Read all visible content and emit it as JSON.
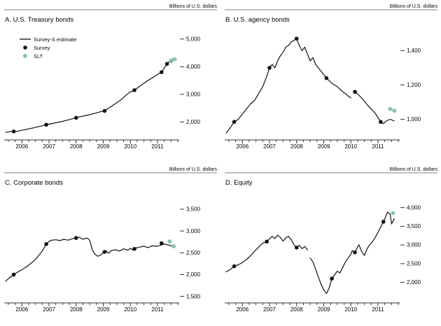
{
  "unit_label": "Billions of U.S. dollars",
  "legend": {
    "estimate_label": "Survey-S estimate",
    "survey_label": "Survey",
    "slt_label": "SLT"
  },
  "colors": {
    "line": "#111111",
    "survey_dot": "#111111",
    "slt_dot": "#8fc2ae",
    "axis": "#333333"
  },
  "x_axis": {
    "start": 2005.4,
    "end": 2011.8,
    "year_labels": [
      2006,
      2007,
      2008,
      2009,
      2010,
      2011
    ]
  },
  "chart_data": [
    {
      "type": "line",
      "title": "A. U.S. Treasury bonds",
      "ylabel": "Billions of U.S. dollars",
      "ylim": [
        1350,
        5450
      ],
      "yticks": [
        2000,
        3000,
        4000,
        5000
      ],
      "legend": true,
      "segments": [
        [
          [
            2005.4,
            1620
          ],
          [
            2005.55,
            1645
          ],
          [
            2005.7,
            1655
          ],
          [
            2005.85,
            1665
          ],
          [
            2006.0,
            1700
          ],
          [
            2006.15,
            1730
          ],
          [
            2006.3,
            1760
          ],
          [
            2006.45,
            1790
          ],
          [
            2006.6,
            1825
          ],
          [
            2006.75,
            1860
          ],
          [
            2006.9,
            1900
          ],
          [
            2007.05,
            1930
          ],
          [
            2007.2,
            1960
          ],
          [
            2007.35,
            1990
          ],
          [
            2007.5,
            2020
          ],
          [
            2007.65,
            2060
          ],
          [
            2007.8,
            2100
          ],
          [
            2007.95,
            2140
          ],
          [
            2008.15,
            2190
          ],
          [
            2008.3,
            2220
          ],
          [
            2008.45,
            2250
          ],
          [
            2008.6,
            2290
          ],
          [
            2008.75,
            2330
          ],
          [
            2008.9,
            2370
          ],
          [
            2009.05,
            2400
          ],
          [
            2009.2,
            2500
          ],
          [
            2009.35,
            2600
          ],
          [
            2009.5,
            2700
          ],
          [
            2009.65,
            2800
          ],
          [
            2009.8,
            2930
          ],
          [
            2009.95,
            3060
          ],
          [
            2010.15,
            3150
          ],
          [
            2010.3,
            3260
          ],
          [
            2010.45,
            3370
          ],
          [
            2010.6,
            3470
          ],
          [
            2010.75,
            3560
          ],
          [
            2010.9,
            3650
          ],
          [
            2011.0,
            3720
          ],
          [
            2011.15,
            3800
          ],
          [
            2011.25,
            3950
          ],
          [
            2011.35,
            4100
          ],
          [
            2011.45,
            4200
          ],
          [
            2011.5,
            4140
          ],
          [
            2011.6,
            4230
          ],
          [
            2011.7,
            4260
          ]
        ]
      ],
      "survey_points": [
        [
          2005.7,
          1655
        ],
        [
          2006.9,
          1900
        ],
        [
          2008.0,
          2150
        ],
        [
          2009.05,
          2400
        ],
        [
          2010.15,
          3150
        ],
        [
          2011.15,
          3800
        ],
        [
          2011.35,
          4100
        ]
      ],
      "slt_points": [
        [
          2011.5,
          4220
        ],
        [
          2011.62,
          4270
        ]
      ]
    },
    {
      "type": "line",
      "title": "B. U.S. agency bonds",
      "ylabel": "Billions of U.S. dollars",
      "ylim": [
        880,
        1540
      ],
      "yticks": [
        1000,
        1200,
        1400
      ],
      "legend": false,
      "segments": [
        [
          [
            2005.4,
            920
          ],
          [
            2005.55,
            950
          ],
          [
            2005.7,
            985
          ],
          [
            2005.85,
            1000
          ],
          [
            2006.0,
            1030
          ],
          [
            2006.15,
            1060
          ],
          [
            2006.3,
            1090
          ],
          [
            2006.45,
            1110
          ],
          [
            2006.6,
            1150
          ],
          [
            2006.75,
            1190
          ],
          [
            2006.9,
            1250
          ],
          [
            2007.0,
            1300
          ],
          [
            2007.1,
            1320
          ],
          [
            2007.2,
            1300
          ],
          [
            2007.3,
            1340
          ],
          [
            2007.4,
            1370
          ],
          [
            2007.5,
            1390
          ],
          [
            2007.6,
            1420
          ],
          [
            2007.7,
            1430
          ],
          [
            2007.8,
            1450
          ],
          [
            2007.9,
            1460
          ],
          [
            2008.0,
            1470
          ],
          [
            2008.1,
            1430
          ],
          [
            2008.2,
            1400
          ],
          [
            2008.3,
            1420
          ],
          [
            2008.4,
            1380
          ],
          [
            2008.5,
            1340
          ],
          [
            2008.6,
            1360
          ],
          [
            2008.7,
            1320
          ],
          [
            2008.8,
            1300
          ],
          [
            2008.9,
            1280
          ],
          [
            2009.0,
            1260
          ],
          [
            2009.1,
            1240
          ],
          [
            2009.2,
            1225
          ],
          [
            2009.3,
            1210
          ],
          [
            2009.4,
            1200
          ],
          [
            2009.5,
            1190
          ],
          [
            2009.6,
            1175
          ],
          [
            2009.7,
            1160
          ],
          [
            2009.8,
            1150
          ],
          [
            2009.9,
            1135
          ],
          [
            2010.0,
            1125
          ]
        ],
        [
          [
            2010.15,
            1160
          ],
          [
            2010.3,
            1140
          ],
          [
            2010.45,
            1115
          ],
          [
            2010.6,
            1085
          ],
          [
            2010.75,
            1060
          ],
          [
            2010.9,
            1035
          ],
          [
            2011.0,
            1010
          ],
          [
            2011.1,
            985
          ],
          [
            2011.2,
            975
          ],
          [
            2011.3,
            990
          ],
          [
            2011.45,
            1000
          ],
          [
            2011.6,
            990
          ]
        ]
      ],
      "survey_points": [
        [
          2005.7,
          985
        ],
        [
          2007.0,
          1300
        ],
        [
          2008.0,
          1470
        ],
        [
          2009.1,
          1240
        ],
        [
          2010.15,
          1160
        ],
        [
          2011.1,
          985
        ]
      ],
      "slt_points": [
        [
          2011.45,
          1060
        ],
        [
          2011.6,
          1050
        ]
      ]
    },
    {
      "type": "line",
      "title": "C. Corporate bonds",
      "ylabel": "Billions of U.S. dollars",
      "ylim": [
        1350,
        3950
      ],
      "yticks": [
        1500,
        2000,
        2500,
        3000,
        3500
      ],
      "legend": false,
      "segments": [
        [
          [
            2005.4,
            1850
          ],
          [
            2005.55,
            1930
          ],
          [
            2005.7,
            2000
          ],
          [
            2005.85,
            2060
          ],
          [
            2006.0,
            2110
          ],
          [
            2006.15,
            2170
          ],
          [
            2006.3,
            2240
          ],
          [
            2006.45,
            2320
          ],
          [
            2006.6,
            2420
          ],
          [
            2006.75,
            2540
          ],
          [
            2006.9,
            2700
          ],
          [
            2007.0,
            2760
          ],
          [
            2007.1,
            2790
          ],
          [
            2007.25,
            2800
          ],
          [
            2007.4,
            2780
          ],
          [
            2007.55,
            2810
          ],
          [
            2007.7,
            2790
          ],
          [
            2007.85,
            2820
          ],
          [
            2008.0,
            2840
          ],
          [
            2008.1,
            2860
          ],
          [
            2008.25,
            2810
          ],
          [
            2008.4,
            2840
          ],
          [
            2008.5,
            2790
          ],
          [
            2008.6,
            2560
          ],
          [
            2008.7,
            2460
          ],
          [
            2008.8,
            2420
          ],
          [
            2008.9,
            2450
          ],
          [
            2009.0,
            2500
          ],
          [
            2009.1,
            2545
          ],
          [
            2009.2,
            2490
          ],
          [
            2009.3,
            2550
          ],
          [
            2009.45,
            2570
          ],
          [
            2009.6,
            2540
          ],
          [
            2009.75,
            2590
          ],
          [
            2009.9,
            2560
          ],
          [
            2010.0,
            2600
          ],
          [
            2010.1,
            2565
          ],
          [
            2010.2,
            2610
          ],
          [
            2010.35,
            2630
          ],
          [
            2010.5,
            2650
          ],
          [
            2010.65,
            2620
          ],
          [
            2010.8,
            2660
          ],
          [
            2010.95,
            2650
          ],
          [
            2011.1,
            2670
          ],
          [
            2011.25,
            2700
          ],
          [
            2011.4,
            2680
          ],
          [
            2011.5,
            2660
          ],
          [
            2011.6,
            2670
          ]
        ]
      ],
      "survey_points": [
        [
          2005.7,
          2000
        ],
        [
          2006.9,
          2700
        ],
        [
          2008.0,
          2840
        ],
        [
          2009.05,
          2520
        ],
        [
          2010.15,
          2590
        ],
        [
          2011.15,
          2720
        ]
      ],
      "slt_points": [
        [
          2011.45,
          2760
        ],
        [
          2011.6,
          2650
        ]
      ]
    },
    {
      "type": "line",
      "title": "D. Equity",
      "ylabel": "Billions of U.S. dollars",
      "ylim": [
        1450,
        4480
      ],
      "yticks": [
        2000,
        2500,
        3000,
        3500,
        4000
      ],
      "legend": false,
      "segments": [
        [
          [
            2005.4,
            2280
          ],
          [
            2005.55,
            2340
          ],
          [
            2005.7,
            2430
          ],
          [
            2005.85,
            2470
          ],
          [
            2006.0,
            2530
          ],
          [
            2006.15,
            2610
          ],
          [
            2006.3,
            2710
          ],
          [
            2006.45,
            2830
          ],
          [
            2006.6,
            2940
          ],
          [
            2006.7,
            3020
          ],
          [
            2006.8,
            3060
          ],
          [
            2006.9,
            3090
          ],
          [
            2007.0,
            3160
          ],
          [
            2007.1,
            3230
          ],
          [
            2007.2,
            3170
          ],
          [
            2007.3,
            3260
          ],
          [
            2007.4,
            3200
          ],
          [
            2007.5,
            3100
          ],
          [
            2007.6,
            3190
          ],
          [
            2007.7,
            3230
          ],
          [
            2007.8,
            3140
          ],
          [
            2007.9,
            3010
          ],
          [
            2008.0,
            2930
          ],
          [
            2008.1,
            2990
          ],
          [
            2008.2,
            2900
          ],
          [
            2008.3,
            2960
          ],
          [
            2008.4,
            2870
          ]
        ],
        [
          [
            2008.5,
            2650
          ],
          [
            2008.6,
            2550
          ],
          [
            2008.7,
            2350
          ],
          [
            2008.8,
            2150
          ],
          [
            2008.9,
            1950
          ],
          [
            2009.0,
            1800
          ],
          [
            2009.1,
            1700
          ],
          [
            2009.2,
            1850
          ],
          [
            2009.3,
            2100
          ],
          [
            2009.4,
            2200
          ],
          [
            2009.5,
            2300
          ],
          [
            2009.6,
            2250
          ],
          [
            2009.7,
            2400
          ],
          [
            2009.8,
            2550
          ],
          [
            2009.9,
            2650
          ],
          [
            2010.0,
            2750
          ],
          [
            2010.05,
            2850
          ],
          [
            2010.15,
            2800
          ],
          [
            2010.25,
            2950
          ],
          [
            2010.3,
            3000
          ],
          [
            2010.4,
            2820
          ],
          [
            2010.5,
            2720
          ],
          [
            2010.6,
            2900
          ],
          [
            2010.7,
            3010
          ],
          [
            2010.8,
            3090
          ],
          [
            2010.9,
            3200
          ],
          [
            2011.0,
            3340
          ],
          [
            2011.1,
            3480
          ],
          [
            2011.2,
            3620
          ],
          [
            2011.3,
            3780
          ],
          [
            2011.35,
            3880
          ],
          [
            2011.45,
            3820
          ],
          [
            2011.5,
            3560
          ],
          [
            2011.6,
            3700
          ]
        ]
      ],
      "survey_points": [
        [
          2005.7,
          2430
        ],
        [
          2006.9,
          3090
        ],
        [
          2008.0,
          2930
        ],
        [
          2009.3,
          2100
        ],
        [
          2010.15,
          2800
        ],
        [
          2011.2,
          3620
        ]
      ],
      "slt_points": [
        [
          2011.55,
          3850
        ]
      ]
    }
  ]
}
